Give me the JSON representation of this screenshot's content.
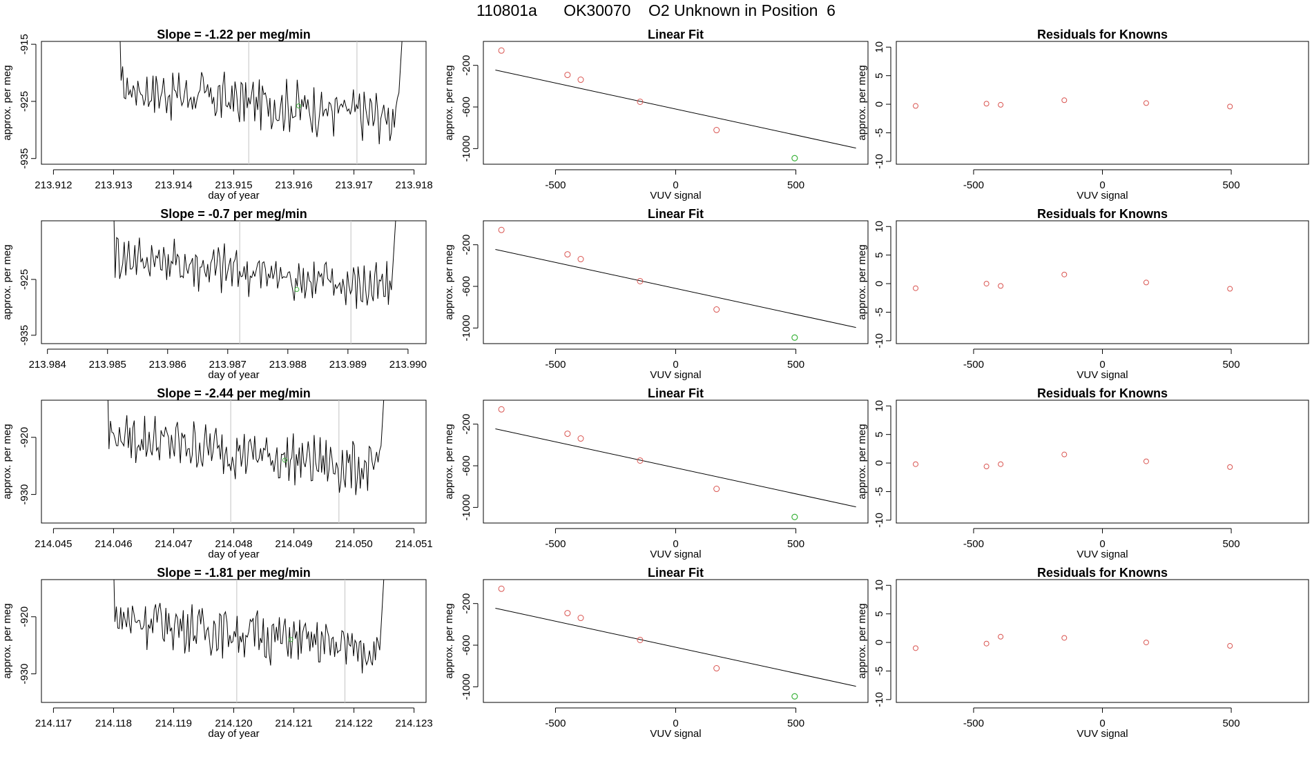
{
  "figure_title": "110801a      OK30070    O2 Unknown in Position  6",
  "colors": {
    "line": "#000000",
    "known_point": "#d9534f",
    "unknown_point": "#3cb33c",
    "marker_line": "#cccccc",
    "fit_line": "#000000"
  },
  "chart_data": [
    {
      "row": 1,
      "timeseries": {
        "type": "line",
        "title": "Slope =  -1.22  per meg/min",
        "xlabel": "day of year",
        "ylabel": "approx. per meg",
        "xlim": [
          213.9118,
          213.9182
        ],
        "ylim": [
          -936,
          -914.5
        ],
        "xticks": [
          "213.912",
          "213.913",
          "213.914",
          "213.915",
          "213.916",
          "213.917",
          "213.918"
        ],
        "yticks": [
          "-915",
          "-925",
          "-935"
        ],
        "start": 213.91305,
        "end": 213.91785,
        "base": -922.5,
        "drift": -5.5,
        "markers": [
          213.91525,
          213.91705
        ],
        "unknown_point": {
          "x": 213.91608,
          "y": -925.8
        }
      },
      "linear_fit": {
        "type": "scatter",
        "title": "Linear Fit",
        "xlabel": "VUV signal",
        "ylabel": "approx. per meg",
        "xlim": [
          -800,
          800
        ],
        "ylim": [
          -1150,
          30
        ],
        "xticks": [
          "-500",
          "0",
          "500"
        ],
        "yticks": [
          "-200",
          "-600",
          "-1000"
        ],
        "fit": {
          "slope": -0.5,
          "intercept": -620
        },
        "knowns": [
          {
            "x": -725,
            "y": -58
          },
          {
            "x": -450,
            "y": -292
          },
          {
            "x": -395,
            "y": -338
          },
          {
            "x": -148,
            "y": -550
          },
          {
            "x": 170,
            "y": -822
          }
        ],
        "unknown": {
          "x": 495,
          "y": -1092
        }
      },
      "residuals": {
        "type": "scatter",
        "title": "Residuals for Knowns",
        "xlabel": "VUV signal",
        "ylabel": "approx. per meg",
        "xlim": [
          -800,
          800
        ],
        "ylim": [
          -10.5,
          11
        ],
        "xticks": [
          "-500",
          "0",
          "500"
        ],
        "yticks": [
          "10",
          "5",
          "0",
          "-5",
          "-10"
        ],
        "points": [
          {
            "x": -725,
            "y": -0.3
          },
          {
            "x": -450,
            "y": 0.1
          },
          {
            "x": -395,
            "y": -0.1
          },
          {
            "x": -148,
            "y": 0.7
          },
          {
            "x": 170,
            "y": 0.2
          },
          {
            "x": 495,
            "y": -0.4
          }
        ]
      }
    },
    {
      "row": 2,
      "timeseries": {
        "type": "line",
        "title": "Slope =  -0.7  per meg/min",
        "xlabel": "day of year",
        "ylabel": "approx. per meg",
        "xlim": [
          213.9839,
          213.9903
        ],
        "ylim": [
          -936.5,
          -914.5
        ],
        "xticks": [
          "213.984",
          "213.985",
          "213.986",
          "213.987",
          "213.988",
          "213.989",
          "213.990"
        ],
        "yticks": [
          "-925",
          "-935"
        ],
        "start": 213.98505,
        "end": 213.98985,
        "base": -920.5,
        "drift": -6.5,
        "markers": [
          213.9872,
          213.98905
        ],
        "unknown_point": {
          "x": 213.98815,
          "y": -926.8
        }
      },
      "linear_fit": {
        "type": "scatter",
        "title": "Linear Fit",
        "xlabel": "VUV signal",
        "ylabel": "approx. per meg",
        "xlim": [
          -800,
          800
        ],
        "ylim": [
          -1150,
          30
        ],
        "xticks": [
          "-500",
          "0",
          "500"
        ],
        "yticks": [
          "-200",
          "-600",
          "-1000"
        ],
        "fit": {
          "slope": -0.5,
          "intercept": -620
        },
        "knowns": [
          {
            "x": -725,
            "y": -58
          },
          {
            "x": -450,
            "y": -292
          },
          {
            "x": -395,
            "y": -338
          },
          {
            "x": -148,
            "y": -550
          },
          {
            "x": 170,
            "y": -822
          }
        ],
        "unknown": {
          "x": 495,
          "y": -1092
        }
      },
      "residuals": {
        "type": "scatter",
        "title": "Residuals for Knowns",
        "xlabel": "VUV signal",
        "ylabel": "approx. per meg",
        "xlim": [
          -800,
          800
        ],
        "ylim": [
          -10.5,
          11
        ],
        "xticks": [
          "-500",
          "0",
          "500"
        ],
        "yticks": [
          "10",
          "5",
          "0",
          "-5",
          "-10"
        ],
        "points": [
          {
            "x": -725,
            "y": -0.8
          },
          {
            "x": -450,
            "y": 0.0
          },
          {
            "x": -395,
            "y": -0.4
          },
          {
            "x": -148,
            "y": 1.6
          },
          {
            "x": 170,
            "y": 0.2
          },
          {
            "x": 495,
            "y": -0.9
          }
        ]
      }
    },
    {
      "row": 3,
      "timeseries": {
        "type": "line",
        "title": "Slope =  -2.44  per meg/min",
        "xlabel": "day of year",
        "ylabel": "approx. per meg",
        "xlim": [
          214.0448,
          214.0512
        ],
        "ylim": [
          -935,
          -913.5
        ],
        "xticks": [
          "214.045",
          "214.046",
          "214.047",
          "214.048",
          "214.049",
          "214.050",
          "214.051"
        ],
        "yticks": [
          "-920",
          "-930"
        ],
        "start": 214.04585,
        "end": 214.05055,
        "base": -919.5,
        "drift": -6.5,
        "markers": [
          214.04795,
          214.04975
        ],
        "unknown_point": {
          "x": 214.04885,
          "y": -924.0
        }
      },
      "linear_fit": {
        "type": "scatter",
        "title": "Linear Fit",
        "xlabel": "VUV signal",
        "ylabel": "approx. per meg",
        "xlim": [
          -800,
          800
        ],
        "ylim": [
          -1150,
          30
        ],
        "xticks": [
          "-500",
          "0",
          "500"
        ],
        "yticks": [
          "-200",
          "-600",
          "-1000"
        ],
        "fit": {
          "slope": -0.5,
          "intercept": -620
        },
        "knowns": [
          {
            "x": -725,
            "y": -58
          },
          {
            "x": -450,
            "y": -292
          },
          {
            "x": -395,
            "y": -338
          },
          {
            "x": -148,
            "y": -550
          },
          {
            "x": 170,
            "y": -822
          }
        ],
        "unknown": {
          "x": 495,
          "y": -1092
        }
      },
      "residuals": {
        "type": "scatter",
        "title": "Residuals for Knowns",
        "xlabel": "VUV signal",
        "ylabel": "approx. per meg",
        "xlim": [
          -800,
          800
        ],
        "ylim": [
          -10.5,
          11
        ],
        "xticks": [
          "-500",
          "0",
          "500"
        ],
        "yticks": [
          "10",
          "5",
          "0",
          "-5",
          "-10"
        ],
        "points": [
          {
            "x": -725,
            "y": -0.2
          },
          {
            "x": -450,
            "y": -0.6
          },
          {
            "x": -395,
            "y": -0.2
          },
          {
            "x": -148,
            "y": 1.5
          },
          {
            "x": 170,
            "y": 0.3
          },
          {
            "x": 495,
            "y": -0.7
          }
        ]
      }
    },
    {
      "row": 4,
      "timeseries": {
        "type": "line",
        "title": "Slope =  -1.81  per meg/min",
        "xlabel": "day of year",
        "ylabel": "approx. per meg",
        "xlim": [
          214.1168,
          214.1232
        ],
        "ylim": [
          -935,
          -913.5
        ],
        "xticks": [
          "214.117",
          "214.118",
          "214.119",
          "214.120",
          "214.121",
          "214.122",
          "214.123"
        ],
        "yticks": [
          "-920",
          "-930"
        ],
        "start": 214.11795,
        "end": 214.12255,
        "base": -920.0,
        "drift": -6.0,
        "markers": [
          214.12005,
          214.12185
        ],
        "unknown_point": {
          "x": 214.12095,
          "y": -924.0
        }
      },
      "linear_fit": {
        "type": "scatter",
        "title": "Linear Fit",
        "xlabel": "VUV signal",
        "ylabel": "approx. per meg",
        "xlim": [
          -800,
          800
        ],
        "ylim": [
          -1150,
          30
        ],
        "xticks": [
          "-500",
          "0",
          "500"
        ],
        "yticks": [
          "-200",
          "-600",
          "-1000"
        ],
        "fit": {
          "slope": -0.5,
          "intercept": -620
        },
        "knowns": [
          {
            "x": -725,
            "y": -58
          },
          {
            "x": -450,
            "y": -292
          },
          {
            "x": -395,
            "y": -338
          },
          {
            "x": -148,
            "y": -550
          },
          {
            "x": 170,
            "y": -822
          }
        ],
        "unknown": {
          "x": 495,
          "y": -1092
        }
      },
      "residuals": {
        "type": "scatter",
        "title": "Residuals for Knowns",
        "xlabel": "VUV signal",
        "ylabel": "approx. per meg",
        "xlim": [
          -800,
          800
        ],
        "ylim": [
          -10.5,
          11
        ],
        "xticks": [
          "-500",
          "0",
          "500"
        ],
        "yticks": [
          "10",
          "5",
          "0",
          "-5",
          "-10"
        ],
        "points": [
          {
            "x": -725,
            "y": -1.0
          },
          {
            "x": -450,
            "y": -0.2
          },
          {
            "x": -395,
            "y": 1.0
          },
          {
            "x": -148,
            "y": 0.8
          },
          {
            "x": 170,
            "y": 0.0
          },
          {
            "x": 495,
            "y": -0.6
          }
        ]
      }
    }
  ]
}
